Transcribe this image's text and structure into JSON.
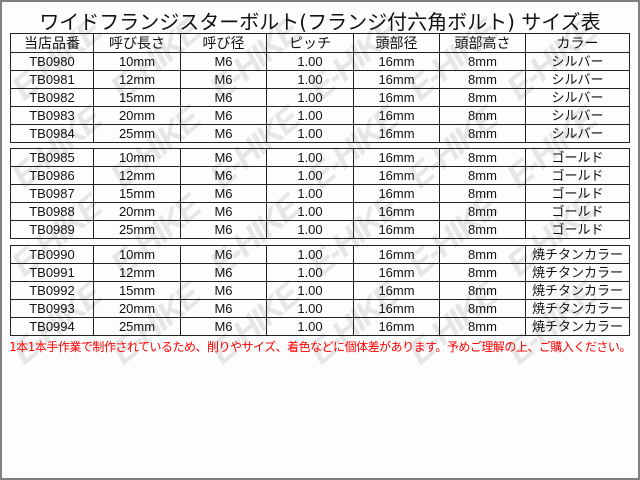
{
  "title": "ワイドフランジスターボルト(フランジ付六角ボルト) サイズ表",
  "headers": [
    "当店品番",
    "呼び長さ",
    "呼び径",
    "ピッチ",
    "頭部径",
    "頭部高さ",
    "カラー"
  ],
  "groups": [
    [
      [
        "TB0980",
        "10mm",
        "M6",
        "1.00",
        "16mm",
        "8mm",
        "シルバー"
      ],
      [
        "TB0981",
        "12mm",
        "M6",
        "1.00",
        "16mm",
        "8mm",
        "シルバー"
      ],
      [
        "TB0982",
        "15mm",
        "M6",
        "1.00",
        "16mm",
        "8mm",
        "シルバー"
      ],
      [
        "TB0983",
        "20mm",
        "M6",
        "1.00",
        "16mm",
        "8mm",
        "シルバー"
      ],
      [
        "TB0984",
        "25mm",
        "M6",
        "1.00",
        "16mm",
        "8mm",
        "シルバー"
      ]
    ],
    [
      [
        "TB0985",
        "10mm",
        "M6",
        "1.00",
        "16mm",
        "8mm",
        "ゴールド"
      ],
      [
        "TB0986",
        "12mm",
        "M6",
        "1.00",
        "16mm",
        "8mm",
        "ゴールド"
      ],
      [
        "TB0987",
        "15mm",
        "M6",
        "1.00",
        "16mm",
        "8mm",
        "ゴールド"
      ],
      [
        "TB0988",
        "20mm",
        "M6",
        "1.00",
        "16mm",
        "8mm",
        "ゴールド"
      ],
      [
        "TB0989",
        "25mm",
        "M6",
        "1.00",
        "16mm",
        "8mm",
        "ゴールド"
      ]
    ],
    [
      [
        "TB0990",
        "10mm",
        "M6",
        "1.00",
        "16mm",
        "8mm",
        "焼チタンカラー"
      ],
      [
        "TB0991",
        "12mm",
        "M6",
        "1.00",
        "16mm",
        "8mm",
        "焼チタンカラー"
      ],
      [
        "TB0992",
        "15mm",
        "M6",
        "1.00",
        "16mm",
        "8mm",
        "焼チタンカラー"
      ],
      [
        "TB0993",
        "20mm",
        "M6",
        "1.00",
        "16mm",
        "8mm",
        "焼チタンカラー"
      ],
      [
        "TB0994",
        "25mm",
        "M6",
        "1.00",
        "16mm",
        "8mm",
        "焼チタンカラー"
      ]
    ]
  ],
  "note": "1本1本手作業で制作されているため、削りやサイズ、着色などに個体差があります。予めご理解の上、ご購入ください。",
  "watermark": "E-HIKE",
  "colors": {
    "note": "#ff0000",
    "border": "#222222",
    "watermark": "#e6e6e6"
  }
}
